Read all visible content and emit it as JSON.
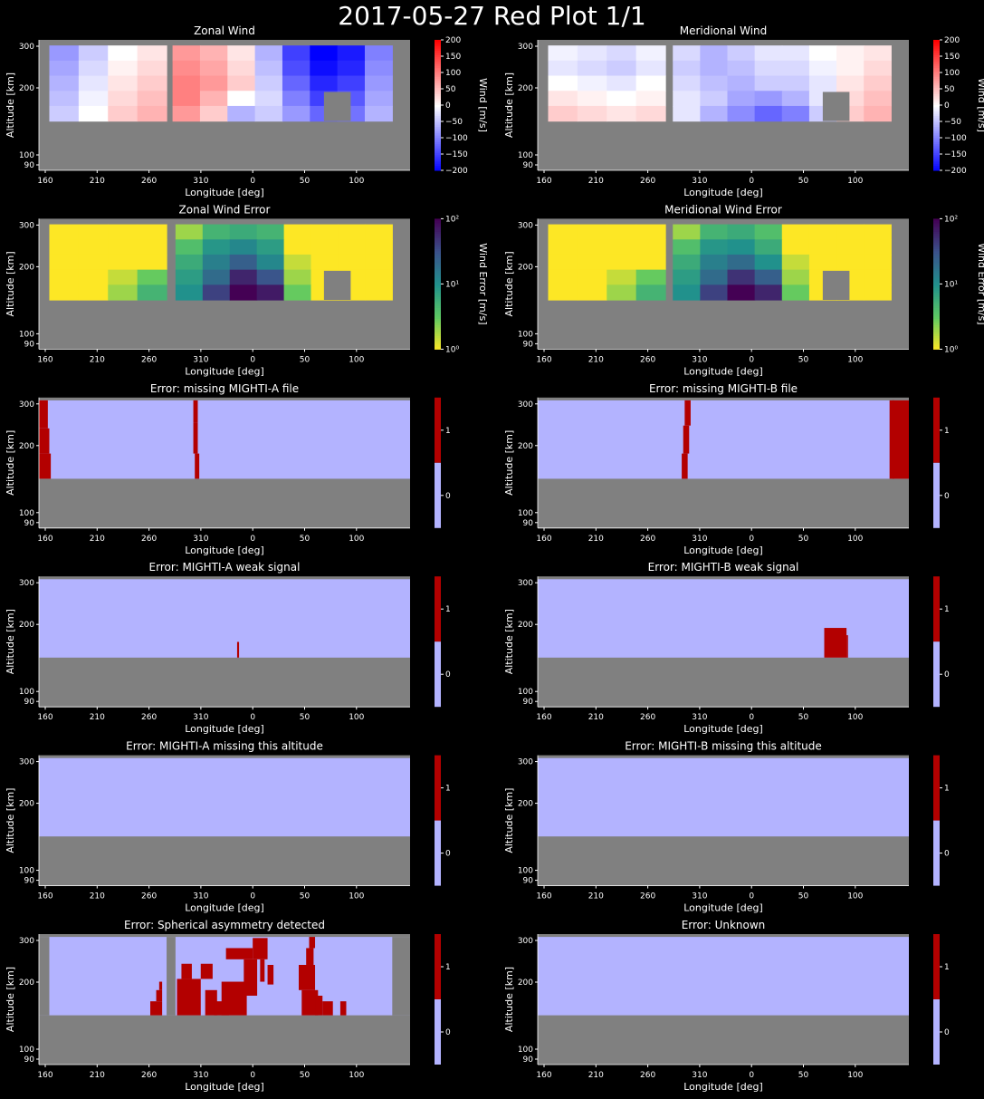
{
  "suptitle": "2017-05-27 Red Plot 1/1",
  "colors": {
    "background": "#000000",
    "nodata": "#808080",
    "flag_off": "#b3b3ff",
    "flag_on": "#b30000",
    "axis": "#ffffff"
  },
  "common_axes": {
    "xlabel": "Longitude [deg]",
    "ylabel": "Altitude [km]",
    "xticks": [
      "160",
      "210",
      "260",
      "310",
      "0",
      "50",
      "100"
    ],
    "yticks": [
      "90",
      "100",
      "200",
      "300"
    ]
  },
  "chart_data": [
    {
      "title": "Zonal Wind",
      "type": "heatmap",
      "colormap": "bwr",
      "colorbar_label": "Wind [m/s]",
      "colorbar_ticks": [
        "200",
        "150",
        "100",
        "50",
        "0",
        "−50",
        "−100",
        "−150",
        "−200"
      ],
      "clim": [
        -200,
        200
      ],
      "segments": [
        {
          "lon_range": [
            157,
            236
          ],
          "alt_range": [
            170,
            305
          ],
          "values": [
            [
              -80,
              -40,
              0,
              20
            ],
            [
              -70,
              -30,
              10,
              30
            ],
            [
              -60,
              -20,
              20,
              40
            ],
            [
              -50,
              -10,
              30,
              50
            ],
            [
              -40,
              0,
              40,
              60
            ]
          ]
        },
        {
          "lon_range": [
            240,
            388
          ],
          "alt_range": [
            170,
            305
          ],
          "values": [
            [
              80,
              60,
              20,
              -60,
              -150,
              -200,
              -180,
              -100
            ],
            [
              90,
              70,
              30,
              -50,
              -140,
              -190,
              -170,
              -90
            ],
            [
              100,
              80,
              40,
              -40,
              -120,
              -170,
              -150,
              -80
            ],
            [
              100,
              60,
              0,
              -30,
              -100,
              -150,
              -130,
              -70
            ],
            [
              80,
              40,
              -60,
              -40,
              -80,
              -120,
              -110,
              -60
            ]
          ]
        }
      ]
    },
    {
      "title": "Meridional Wind",
      "type": "heatmap",
      "colormap": "bwr",
      "colorbar_label": "Wind [m/s]",
      "colorbar_ticks": [
        "200",
        "150",
        "100",
        "50",
        "0",
        "−50",
        "−100",
        "−150",
        "−200"
      ],
      "clim": [
        -200,
        200
      ],
      "segments": [
        {
          "lon_range": [
            157,
            236
          ],
          "alt_range": [
            170,
            305
          ],
          "values": [
            [
              -10,
              -20,
              -30,
              -10
            ],
            [
              -20,
              -30,
              -40,
              -20
            ],
            [
              0,
              -10,
              -20,
              0
            ],
            [
              20,
              10,
              0,
              10
            ],
            [
              40,
              30,
              20,
              30
            ]
          ]
        },
        {
          "lon_range": [
            241,
            388
          ],
          "alt_range": [
            170,
            305
          ],
          "values": [
            [
              -30,
              -60,
              -40,
              -20,
              -20,
              0,
              10,
              20
            ],
            [
              -40,
              -60,
              -50,
              -30,
              -30,
              -10,
              10,
              30
            ],
            [
              -30,
              -50,
              -60,
              -40,
              -40,
              -20,
              20,
              40
            ],
            [
              -20,
              -40,
              -70,
              -80,
              -60,
              -20,
              30,
              50
            ],
            [
              -20,
              -60,
              -90,
              -120,
              -100,
              -40,
              40,
              60
            ]
          ]
        }
      ]
    },
    {
      "title": "Zonal Wind Error",
      "type": "heatmap",
      "colormap": "viridis_r",
      "scale": "log",
      "colorbar_label": "Wind Error [m/s]",
      "colorbar_ticks": [
        "10²",
        "10¹",
        "10⁰"
      ],
      "clim": [
        1,
        100
      ],
      "segments": [
        {
          "lon_range": [
            157,
            236
          ],
          "alt_range": [
            170,
            305
          ],
          "values": [
            [
              1,
              1,
              1,
              1
            ],
            [
              1,
              1,
              1,
              1
            ],
            [
              1,
              1,
              1,
              1
            ],
            [
              1,
              1,
              1.5,
              3
            ],
            [
              1,
              1,
              2,
              5
            ]
          ]
        },
        {
          "lon_range": [
            242,
            388
          ],
          "alt_range": [
            170,
            305
          ],
          "values": [
            [
              2,
              5,
              6,
              5,
              1,
              1,
              1,
              1
            ],
            [
              4,
              9,
              12,
              8,
              1,
              1,
              1,
              1
            ],
            [
              6,
              14,
              25,
              12,
              1.5,
              1,
              1,
              1
            ],
            [
              8,
              20,
              60,
              30,
              2,
              1,
              1,
              1
            ],
            [
              10,
              40,
              100,
              70,
              3,
              1,
              1,
              1
            ]
          ]
        }
      ]
    },
    {
      "title": "Meridional Wind Error",
      "type": "heatmap",
      "colormap": "viridis_r",
      "scale": "log",
      "colorbar_label": "Wind Error [m/s]",
      "colorbar_ticks": [
        "10²",
        "10¹",
        "10⁰"
      ],
      "clim": [
        1,
        100
      ],
      "segments": [
        {
          "lon_range": [
            157,
            236
          ],
          "alt_range": [
            170,
            305
          ],
          "values": [
            [
              1,
              1,
              1,
              1
            ],
            [
              1,
              1,
              1,
              1
            ],
            [
              1,
              1,
              1,
              1
            ],
            [
              1,
              1,
              1.5,
              3
            ],
            [
              1,
              1,
              2,
              5
            ]
          ]
        },
        {
          "lon_range": [
            241,
            388
          ],
          "alt_range": [
            170,
            305
          ],
          "values": [
            [
              2,
              5,
              6,
              4,
              1,
              1,
              1,
              1
            ],
            [
              4,
              9,
              10,
              6,
              1,
              1,
              1,
              1
            ],
            [
              6,
              14,
              20,
              10,
              1.5,
              1,
              1,
              1
            ],
            [
              8,
              20,
              50,
              25,
              2,
              1,
              1,
              1
            ],
            [
              10,
              40,
              100,
              60,
              3,
              1,
              1,
              1
            ]
          ]
        }
      ]
    },
    {
      "title": "Error: missing MIGHTI-A file",
      "type": "heatmap",
      "colormap": "binary_flag",
      "colorbar_ticks": [
        "1",
        "0"
      ],
      "flag_regions": [
        {
          "lon": [
            150,
            156
          ],
          "alt": [
            260,
            310
          ]
        },
        {
          "lon": [
            150,
            157
          ],
          "alt": [
            215,
            260
          ]
        },
        {
          "lon": [
            150,
            158
          ],
          "alt": [
            170,
            215
          ]
        },
        {
          "lon": [
            254,
            257
          ],
          "alt": [
            270,
            310
          ]
        },
        {
          "lon": [
            254,
            257
          ],
          "alt": [
            215,
            270
          ]
        },
        {
          "lon": [
            255,
            258
          ],
          "alt": [
            170,
            215
          ]
        }
      ]
    },
    {
      "title": "Error: missing MIGHTI-B file",
      "type": "heatmap",
      "colormap": "binary_flag",
      "colorbar_ticks": [
        "1",
        "0"
      ],
      "flag_regions": [
        {
          "lon": [
            249,
            253
          ],
          "alt": [
            265,
            310
          ]
        },
        {
          "lon": [
            248,
            252
          ],
          "alt": [
            215,
            265
          ]
        },
        {
          "lon": [
            247,
            251
          ],
          "alt": [
            170,
            215
          ]
        },
        {
          "lon": [
            389,
            400
          ],
          "alt": [
            170,
            310
          ]
        },
        {
          "lon": [
            387,
            390
          ],
          "alt": [
            170,
            310
          ]
        }
      ]
    },
    {
      "title": "Error: MIGHTI-A weak signal",
      "type": "heatmap",
      "colormap": "binary_flag",
      "colorbar_ticks": [
        "1",
        "0"
      ],
      "flag_regions": [
        {
          "lon": [
            283.5,
            284.8
          ],
          "alt": [
            170,
            198
          ]
        }
      ]
    },
    {
      "title": "Error: MIGHTI-B weak signal",
      "type": "heatmap",
      "colormap": "binary_flag",
      "colorbar_ticks": [
        "1",
        "0"
      ],
      "flag_regions": [
        {
          "lon": [
            343,
            358
          ],
          "alt": [
            170,
            223
          ]
        },
        {
          "lon": [
            358,
            359
          ],
          "alt": [
            170,
            210
          ]
        }
      ]
    },
    {
      "title": "Error: MIGHTI-A missing this altitude",
      "type": "heatmap",
      "colormap": "binary_flag",
      "colorbar_ticks": [
        "1",
        "0"
      ],
      "flag_regions": []
    },
    {
      "title": "Error: MIGHTI-B missing this altitude",
      "type": "heatmap",
      "colormap": "binary_flag",
      "colorbar_ticks": [
        "1",
        "0"
      ],
      "flag_regions": []
    },
    {
      "title": "Error: Spherical asymmetry detected",
      "type": "heatmap",
      "colormap": "binary_flag",
      "colorbar_ticks": [
        "1",
        "0"
      ],
      "flag_regions": [
        {
          "lon": [
            225,
            233
          ],
          "alt": [
            170,
            195
          ]
        },
        {
          "lon": [
            229,
            233
          ],
          "alt": [
            195,
            215
          ]
        },
        {
          "lon": [
            231,
            233
          ],
          "alt": [
            215,
            230
          ]
        },
        {
          "lon": [
            243,
            259
          ],
          "alt": [
            170,
            235
          ]
        },
        {
          "lon": [
            246,
            253
          ],
          "alt": [
            235,
            262
          ]
        },
        {
          "lon": [
            262,
            270
          ],
          "alt": [
            170,
            215
          ]
        },
        {
          "lon": [
            268,
            278
          ],
          "alt": [
            170,
            195
          ]
        },
        {
          "lon": [
            259,
            267
          ],
          "alt": [
            235,
            262
          ]
        },
        {
          "lon": [
            273,
            290
          ],
          "alt": [
            170,
            230
          ]
        },
        {
          "lon": [
            288,
            297
          ],
          "alt": [
            205,
            270
          ]
        },
        {
          "lon": [
            294,
            304
          ],
          "alt": [
            270,
            308
          ]
        },
        {
          "lon": [
            276,
            294
          ],
          "alt": [
            270,
            290
          ]
        },
        {
          "lon": [
            299,
            302
          ],
          "alt": [
            230,
            270
          ]
        },
        {
          "lon": [
            304,
            308
          ],
          "alt": [
            225,
            260
          ]
        },
        {
          "lon": [
            325,
            336
          ],
          "alt": [
            215,
            260
          ]
        },
        {
          "lon": [
            327,
            338
          ],
          "alt": [
            170,
            215
          ]
        },
        {
          "lon": [
            330,
            335
          ],
          "alt": [
            260,
            290
          ]
        },
        {
          "lon": [
            332,
            336
          ],
          "alt": [
            290,
            310
          ]
        },
        {
          "lon": [
            336,
            341
          ],
          "alt": [
            170,
            205
          ]
        },
        {
          "lon": [
            341,
            348
          ],
          "alt": [
            170,
            195
          ]
        },
        {
          "lon": [
            353,
            357
          ],
          "alt": [
            170,
            195
          ]
        }
      ]
    },
    {
      "title": "Error: Unknown",
      "type": "heatmap",
      "colormap": "binary_flag",
      "colorbar_ticks": [
        "1",
        "0"
      ],
      "flag_regions": []
    }
  ]
}
